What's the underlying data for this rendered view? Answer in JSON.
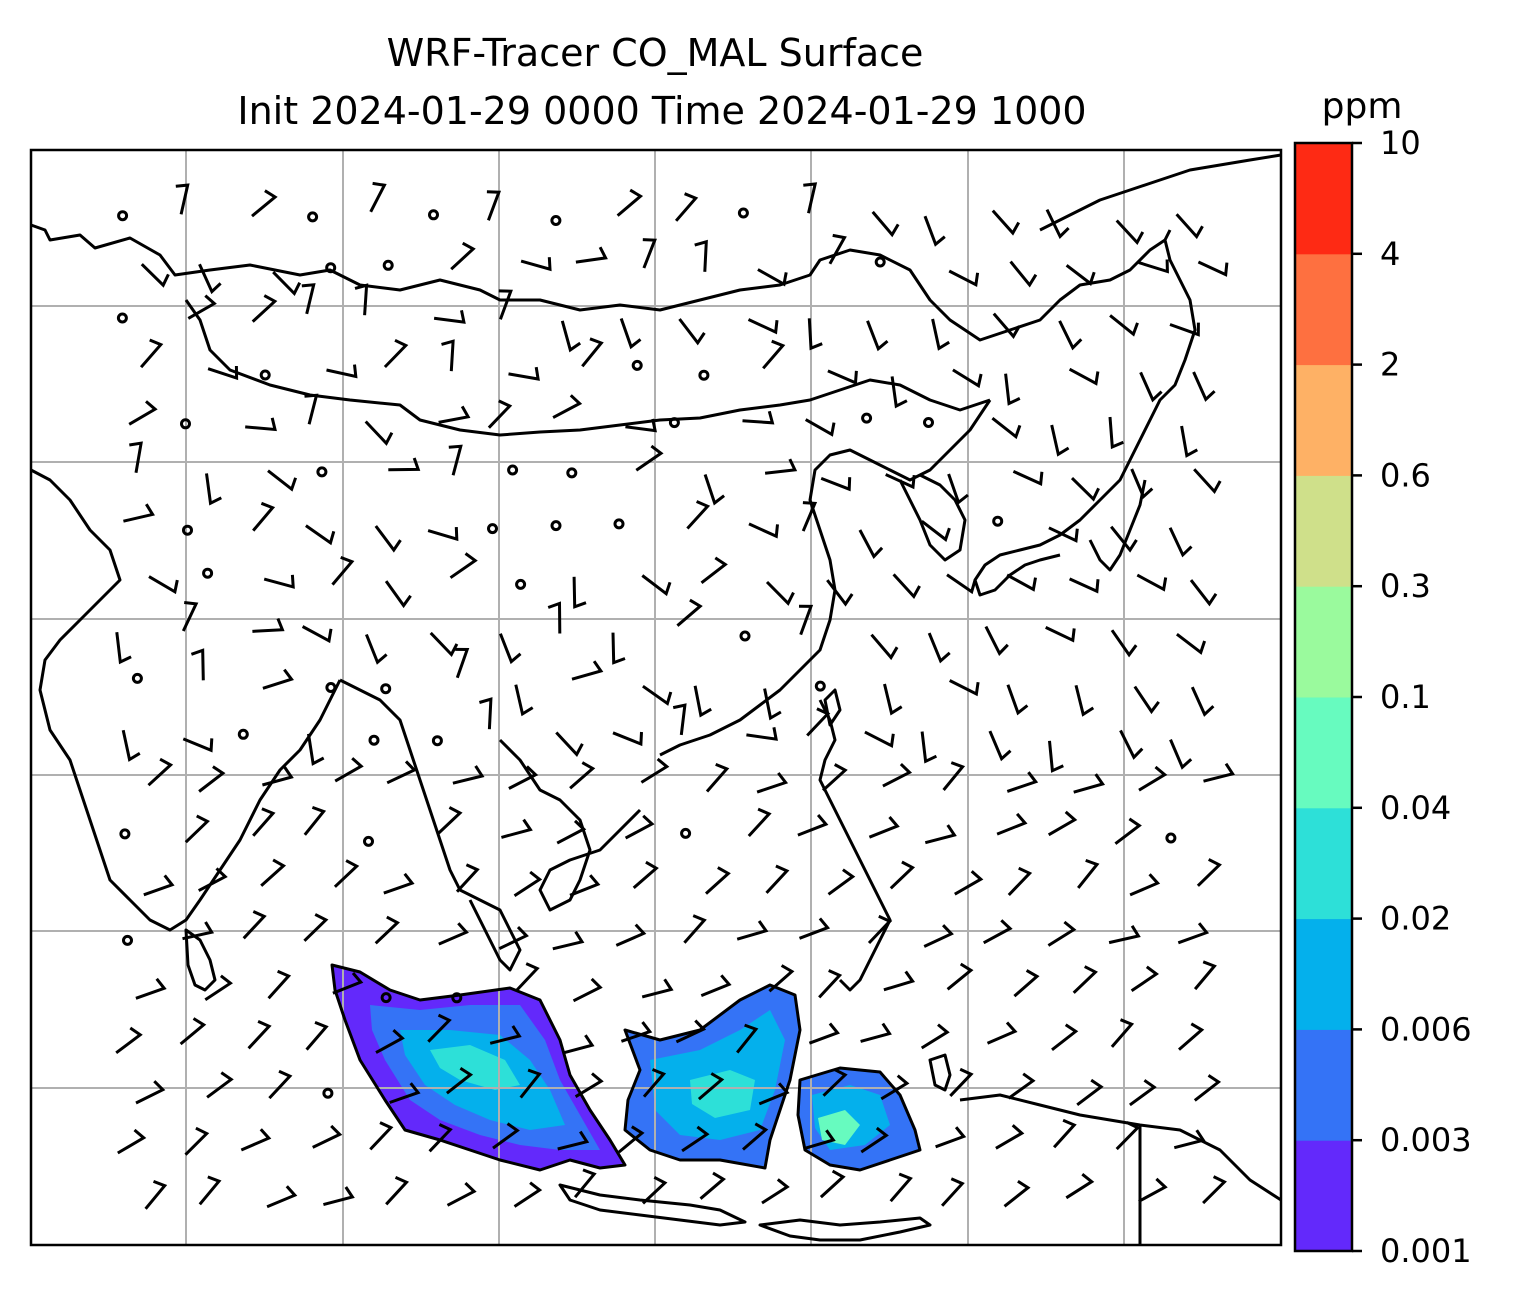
{
  "title": {
    "line1": "WRF-Tracer CO_MAL Surface",
    "line2": "Init 2024-01-29 0000 Time 2024-01-29 1000"
  },
  "colorbar": {
    "unit": "ppm",
    "levels": [
      {
        "value": "0.001",
        "color": "#6329fb"
      },
      {
        "value": "0.003",
        "color": "#3473f6"
      },
      {
        "value": "0.006",
        "color": "#04b0ec"
      },
      {
        "value": "0.02",
        "color": "#2de0d8"
      },
      {
        "value": "0.04",
        "color": "#67fbbf"
      },
      {
        "value": "0.1",
        "color": "#9afa9d"
      },
      {
        "value": "0.3",
        "color": "#cfe08a"
      },
      {
        "value": "0.6",
        "color": "#feb165"
      },
      {
        "value": "2",
        "color": "#fe7040"
      },
      {
        "value": "4",
        "color": "#fe2a14"
      },
      {
        "value": "10",
        "color": ""
      }
    ]
  },
  "colors": {
    "gridline": "#b0b0b0",
    "coastline": "#000000",
    "wind_barb": "#000000"
  }
}
